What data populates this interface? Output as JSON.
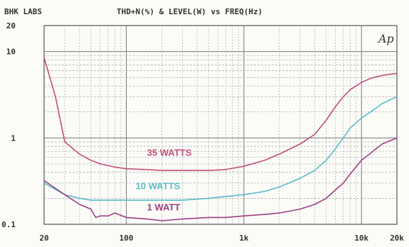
{
  "header": {
    "brand": "BHK LABS",
    "title": "THD+N(%) & LEVEL(W) vs FREQ(Hz)",
    "logo": "Ap"
  },
  "chart_data": {
    "type": "line",
    "x_scale": "log",
    "y_scale": "log",
    "xlim": [
      20,
      20000
    ],
    "ylim": [
      0.1,
      20
    ],
    "grid": true,
    "x_ticks": [
      {
        "value": 20,
        "label": "20"
      },
      {
        "value": 100,
        "label": "100"
      },
      {
        "value": 1000,
        "label": "1k"
      },
      {
        "value": 10000,
        "label": "10k"
      },
      {
        "value": 20000,
        "label": "20k"
      }
    ],
    "y_ticks": [
      {
        "value": 20,
        "label": "20"
      },
      {
        "value": 10,
        "label": "10"
      },
      {
        "value": 1,
        "label": "1"
      },
      {
        "value": 0.1,
        "label": "0.1"
      }
    ],
    "series": [
      {
        "name": "35 WATTS",
        "color": "#c2507a",
        "x": [
          20,
          25,
          30,
          40,
          50,
          60,
          80,
          100,
          150,
          200,
          300,
          500,
          700,
          1000,
          1500,
          2000,
          3000,
          4000,
          5000,
          6000,
          7000,
          8000,
          10000,
          12000,
          15000,
          20000
        ],
        "y": [
          8.5,
          3.0,
          0.9,
          0.65,
          0.55,
          0.5,
          0.46,
          0.44,
          0.43,
          0.42,
          0.42,
          0.42,
          0.43,
          0.47,
          0.55,
          0.65,
          0.85,
          1.1,
          1.6,
          2.3,
          3.0,
          3.6,
          4.4,
          4.9,
          5.3,
          5.6
        ]
      },
      {
        "name": "10 WATTS",
        "color": "#5bbcc8",
        "x": [
          20,
          30,
          40,
          50,
          60,
          80,
          100,
          150,
          200,
          300,
          500,
          700,
          1000,
          1500,
          2000,
          3000,
          4000,
          5000,
          6000,
          7000,
          8000,
          10000,
          12000,
          15000,
          20000
        ],
        "y": [
          0.3,
          0.22,
          0.2,
          0.19,
          0.19,
          0.19,
          0.19,
          0.19,
          0.19,
          0.19,
          0.2,
          0.21,
          0.22,
          0.24,
          0.27,
          0.34,
          0.42,
          0.55,
          0.75,
          1.0,
          1.3,
          1.7,
          2.0,
          2.5,
          3.0
        ]
      },
      {
        "name": "1 WATT",
        "color": "#9e3f82",
        "x": [
          20,
          30,
          40,
          50,
          55,
          60,
          70,
          80,
          100,
          150,
          200,
          300,
          500,
          700,
          1000,
          1500,
          2000,
          3000,
          4000,
          5000,
          6000,
          7000,
          8000,
          10000,
          15000,
          20000
        ],
        "y": [
          0.32,
          0.22,
          0.17,
          0.15,
          0.12,
          0.125,
          0.125,
          0.135,
          0.12,
          0.115,
          0.11,
          0.115,
          0.12,
          0.12,
          0.125,
          0.13,
          0.135,
          0.15,
          0.17,
          0.2,
          0.25,
          0.3,
          0.38,
          0.55,
          0.85,
          1.0
        ]
      }
    ]
  }
}
